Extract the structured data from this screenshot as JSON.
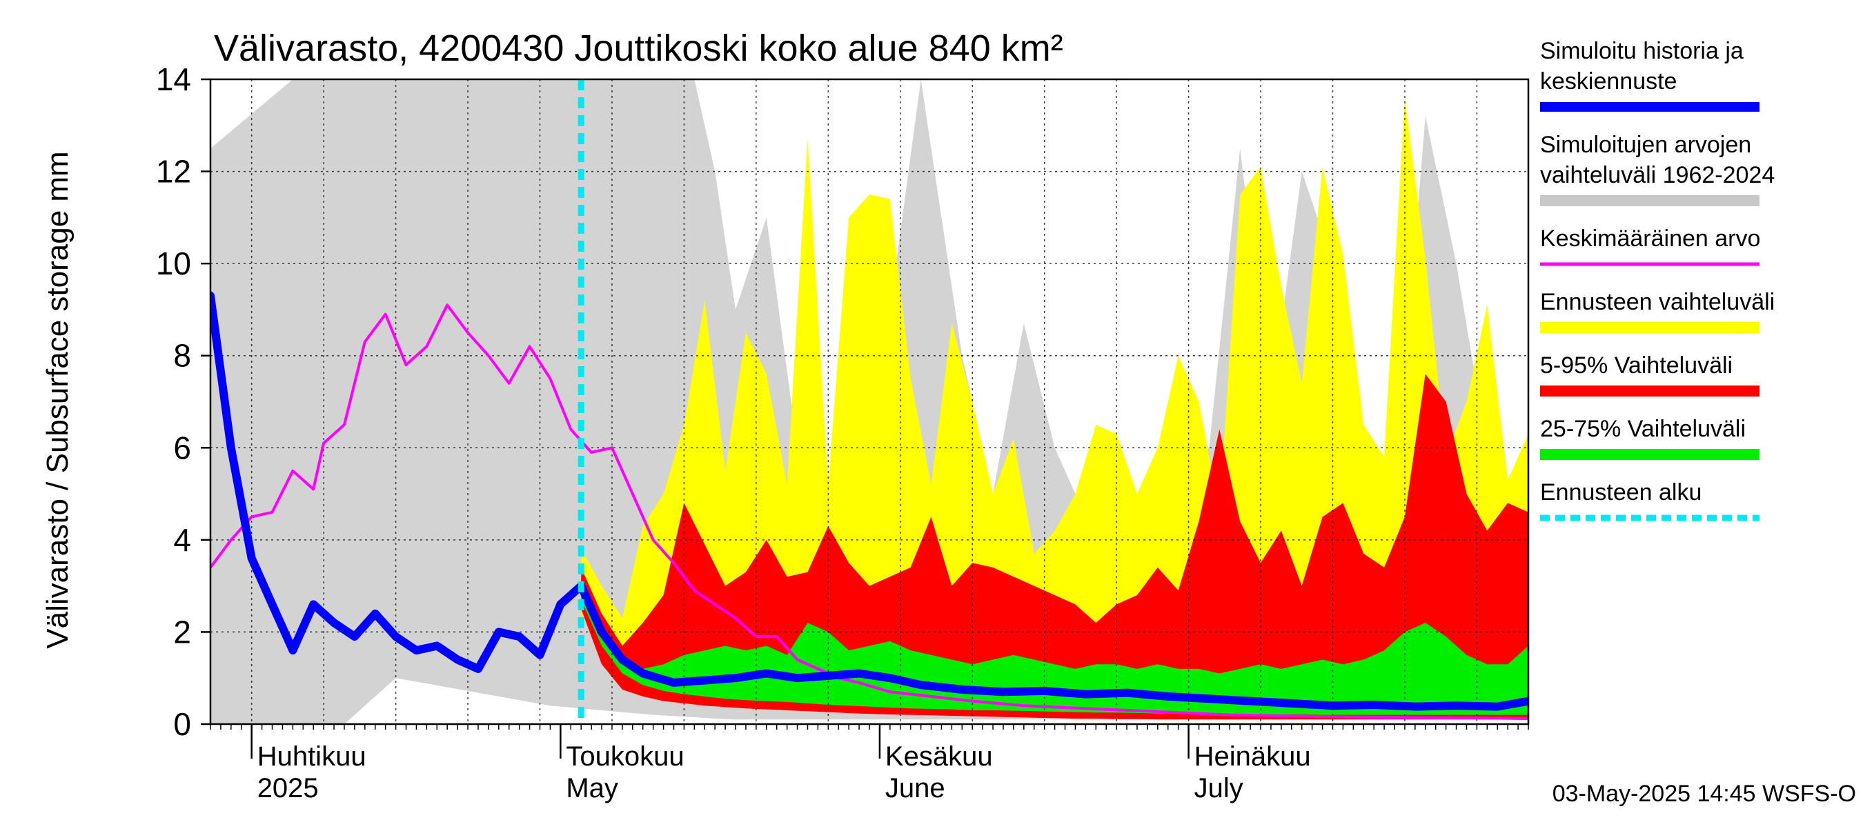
{
  "chart_data": {
    "type": "area",
    "title": "Välivarasto, 4200430 Jouttikoski koko alue 840 km²",
    "ylabel": "Välivarasto / Subsurface storage  mm",
    "ylim": [
      0,
      14
    ],
    "yticks": [
      0,
      2,
      4,
      6,
      8,
      10,
      12,
      14
    ],
    "xlim": [
      "2025-03-28",
      "2025-08-03"
    ],
    "grid": true,
    "legend_position": "right",
    "month_labels": [
      {
        "fi": "Huhtikuu",
        "en": "2025",
        "date": "2025-04-01"
      },
      {
        "fi": "Toukokuu",
        "en": "May",
        "date": "2025-05-01"
      },
      {
        "fi": "Kesäkuu",
        "en": "June",
        "date": "2025-06-01"
      },
      {
        "fi": "Heinäkuu",
        "en": "July",
        "date": "2025-07-01"
      }
    ],
    "forecast_start": "2025-05-03",
    "footer": "03-May-2025 14:45 WSFS-O",
    "legend": [
      {
        "label": "Simuloitu historia ja\nkeskiennuste",
        "color": "#0000ff",
        "kind": "line"
      },
      {
        "label": "Simuloitujen arvojen\nvaihteluväli 1962-2024",
        "color": "#c8c8c8",
        "kind": "band"
      },
      {
        "label": "Keskimääräinen arvo",
        "color": "#ff00ff",
        "kind": "line"
      },
      {
        "label": "Ennusteen vaihteluväli",
        "color": "#ffff00",
        "kind": "band"
      },
      {
        "label": "5-95% Vaihteluväli",
        "color": "#ff0000",
        "kind": "band"
      },
      {
        "label": "25-75% Vaihteluväli",
        "color": "#00ee00",
        "kind": "band"
      },
      {
        "label": "Ennusteen alku",
        "color": "#00e8f0",
        "kind": "dashed"
      }
    ],
    "series": [
      {
        "name": "Simuloitujen arvojen vaihteluväli 1962-2024",
        "kind": "band",
        "color": "#d3d3d3",
        "x": [
          "2025-03-28",
          "2025-04-05",
          "2025-04-10",
          "2025-04-15",
          "2025-04-20",
          "2025-04-25",
          "2025-04-30",
          "2025-05-05",
          "2025-05-10",
          "2025-05-14",
          "2025-05-16",
          "2025-05-18",
          "2025-05-21",
          "2025-05-24",
          "2025-05-27",
          "2025-05-30",
          "2025-06-02",
          "2025-06-05",
          "2025-06-09",
          "2025-06-12",
          "2025-06-15",
          "2025-06-18",
          "2025-06-21",
          "2025-06-24",
          "2025-06-27",
          "2025-06-30",
          "2025-07-03",
          "2025-07-06",
          "2025-07-09",
          "2025-07-12",
          "2025-07-15",
          "2025-07-18",
          "2025-07-21",
          "2025-07-24",
          "2025-07-27",
          "2025-07-30",
          "2025-08-03"
        ],
        "low": [
          0,
          0,
          0,
          1.0,
          0.8,
          0.6,
          0.4,
          0.3,
          0.2,
          0.15,
          0.12,
          0.1,
          0.1,
          0.1,
          0.1,
          0.1,
          0.1,
          0.1,
          0.1,
          0.1,
          0.1,
          0.1,
          0.1,
          0.1,
          0.1,
          0.1,
          0.1,
          0.1,
          0.1,
          0.1,
          0.1,
          0.1,
          0.1,
          0.1,
          0.1,
          0.1,
          0.1
        ],
        "high": [
          12.5,
          14,
          14,
          14,
          14,
          14,
          14,
          14,
          14,
          14,
          12,
          9,
          11,
          6,
          5,
          7,
          9,
          14,
          8,
          5,
          8.7,
          6,
          4.5,
          4,
          3.5,
          5.5,
          6,
          12.5,
          7,
          12,
          10,
          6,
          5,
          13.2,
          10,
          6,
          4.6
        ]
      },
      {
        "name": "Ennusteen vaihteluväli",
        "kind": "band",
        "color": "#ffff00",
        "x": [
          "2025-05-03",
          "2025-05-05",
          "2025-05-07",
          "2025-05-09",
          "2025-05-11",
          "2025-05-13",
          "2025-05-15",
          "2025-05-17",
          "2025-05-19",
          "2025-05-21",
          "2025-05-23",
          "2025-05-25",
          "2025-05-27",
          "2025-05-29",
          "2025-05-31",
          "2025-06-02",
          "2025-06-04",
          "2025-06-06",
          "2025-06-08",
          "2025-06-10",
          "2025-06-12",
          "2025-06-14",
          "2025-06-16",
          "2025-06-18",
          "2025-06-20",
          "2025-06-22",
          "2025-06-24",
          "2025-06-26",
          "2025-06-28",
          "2025-06-30",
          "2025-07-02",
          "2025-07-04",
          "2025-07-06",
          "2025-07-08",
          "2025-07-10",
          "2025-07-12",
          "2025-07-14",
          "2025-07-16",
          "2025-07-18",
          "2025-07-20",
          "2025-07-22",
          "2025-07-24",
          "2025-07-26",
          "2025-07-28",
          "2025-07-30",
          "2025-08-01",
          "2025-08-03"
        ],
        "low": [
          2.4,
          1.6,
          0.9,
          0.7,
          0.55,
          0.5,
          0.45,
          0.4,
          0.38,
          0.35,
          0.32,
          0.3,
          0.28,
          0.26,
          0.25,
          0.24,
          0.22,
          0.2,
          0.2,
          0.18,
          0.17,
          0.16,
          0.15,
          0.14,
          0.13,
          0.12,
          0.12,
          0.11,
          0.1,
          0.1,
          0.1,
          0.1,
          0.1,
          0.1,
          0.1,
          0.1,
          0.1,
          0.1,
          0.1,
          0.1,
          0.1,
          0.1,
          0.1,
          0.1,
          0.1,
          0.1,
          0.1
        ],
        "high": [
          3.8,
          3.0,
          2.3,
          4.3,
          5.0,
          6.5,
          9.2,
          5.5,
          8.5,
          7.6,
          5.2,
          12.7,
          5.2,
          11.0,
          11.5,
          11.4,
          7.5,
          5.2,
          8.7,
          7.0,
          5.0,
          6.2,
          3.7,
          4.2,
          5.0,
          6.5,
          6.3,
          5.0,
          6.0,
          8.0,
          7.0,
          4.6,
          11.5,
          12.1,
          9.5,
          7.4,
          12.1,
          10.2,
          6.5,
          5.8,
          13.6,
          10.1,
          5.8,
          7.0,
          9.1,
          5.3,
          6.3
        ]
      },
      {
        "name": "5-95% Vaihteluväli",
        "kind": "band",
        "color": "#ff0000",
        "x": [
          "2025-05-03",
          "2025-05-05",
          "2025-05-07",
          "2025-05-09",
          "2025-05-11",
          "2025-05-13",
          "2025-05-15",
          "2025-05-17",
          "2025-05-19",
          "2025-05-21",
          "2025-05-23",
          "2025-05-25",
          "2025-05-27",
          "2025-05-29",
          "2025-05-31",
          "2025-06-02",
          "2025-06-04",
          "2025-06-06",
          "2025-06-08",
          "2025-06-10",
          "2025-06-12",
          "2025-06-14",
          "2025-06-16",
          "2025-06-18",
          "2025-06-20",
          "2025-06-22",
          "2025-06-24",
          "2025-06-26",
          "2025-06-28",
          "2025-06-30",
          "2025-07-02",
          "2025-07-04",
          "2025-07-06",
          "2025-07-08",
          "2025-07-10",
          "2025-07-12",
          "2025-07-14",
          "2025-07-16",
          "2025-07-18",
          "2025-07-20",
          "2025-07-22",
          "2025-07-24",
          "2025-07-26",
          "2025-07-28",
          "2025-07-30",
          "2025-08-01",
          "2025-08-03"
        ],
        "low": [
          2.5,
          1.3,
          0.75,
          0.6,
          0.5,
          0.45,
          0.4,
          0.37,
          0.34,
          0.32,
          0.3,
          0.28,
          0.26,
          0.24,
          0.22,
          0.21,
          0.2,
          0.19,
          0.18,
          0.17,
          0.16,
          0.15,
          0.14,
          0.13,
          0.12,
          0.12,
          0.11,
          0.11,
          0.1,
          0.1,
          0.1,
          0.1,
          0.1,
          0.1,
          0.1,
          0.1,
          0.1,
          0.1,
          0.1,
          0.1,
          0.1,
          0.1,
          0.1,
          0.1,
          0.1,
          0.1,
          0.1
        ],
        "high": [
          3.4,
          2.4,
          1.7,
          2.2,
          2.8,
          4.8,
          3.9,
          3.0,
          3.3,
          4.0,
          3.2,
          3.3,
          4.3,
          3.5,
          3.0,
          3.2,
          3.4,
          4.5,
          3.0,
          3.5,
          3.4,
          3.2,
          3.0,
          2.8,
          2.6,
          2.2,
          2.6,
          2.8,
          3.4,
          2.9,
          4.4,
          6.4,
          4.4,
          3.5,
          4.2,
          3.0,
          4.5,
          4.8,
          3.7,
          3.4,
          4.5,
          7.6,
          7.0,
          5.0,
          4.2,
          4.8,
          4.6
        ]
      },
      {
        "name": "25-75% Vaihteluväli",
        "kind": "band",
        "color": "#00ee00",
        "x": [
          "2025-05-03",
          "2025-05-05",
          "2025-05-07",
          "2025-05-09",
          "2025-05-11",
          "2025-05-13",
          "2025-05-15",
          "2025-05-17",
          "2025-05-19",
          "2025-05-21",
          "2025-05-23",
          "2025-05-25",
          "2025-05-27",
          "2025-05-29",
          "2025-05-31",
          "2025-06-02",
          "2025-06-04",
          "2025-06-06",
          "2025-06-08",
          "2025-06-10",
          "2025-06-12",
          "2025-06-14",
          "2025-06-16",
          "2025-06-18",
          "2025-06-20",
          "2025-06-22",
          "2025-06-24",
          "2025-06-26",
          "2025-06-28",
          "2025-06-30",
          "2025-07-02",
          "2025-07-04",
          "2025-07-06",
          "2025-07-08",
          "2025-07-10",
          "2025-07-12",
          "2025-07-14",
          "2025-07-16",
          "2025-07-18",
          "2025-07-20",
          "2025-07-22",
          "2025-07-24",
          "2025-07-26",
          "2025-07-28",
          "2025-07-30",
          "2025-08-01",
          "2025-08-03"
        ],
        "low": [
          2.7,
          1.7,
          1.1,
          0.85,
          0.72,
          0.65,
          0.6,
          0.55,
          0.52,
          0.5,
          0.48,
          0.45,
          0.42,
          0.4,
          0.38,
          0.36,
          0.34,
          0.33,
          0.32,
          0.3,
          0.3,
          0.29,
          0.28,
          0.27,
          0.26,
          0.25,
          0.25,
          0.24,
          0.23,
          0.23,
          0.22,
          0.22,
          0.21,
          0.21,
          0.21,
          0.21,
          0.2,
          0.2,
          0.2,
          0.2,
          0.2,
          0.2,
          0.2,
          0.2,
          0.2,
          0.2,
          0.2
        ],
        "high": [
          3.1,
          2.1,
          1.5,
          1.2,
          1.3,
          1.5,
          1.6,
          1.7,
          1.6,
          1.7,
          1.5,
          2.2,
          2.0,
          1.6,
          1.7,
          1.8,
          1.6,
          1.5,
          1.4,
          1.3,
          1.4,
          1.5,
          1.4,
          1.3,
          1.2,
          1.3,
          1.3,
          1.2,
          1.3,
          1.2,
          1.2,
          1.1,
          1.2,
          1.3,
          1.2,
          1.3,
          1.4,
          1.3,
          1.4,
          1.6,
          2.0,
          2.2,
          1.9,
          1.5,
          1.3,
          1.3,
          1.7
        ]
      },
      {
        "name": "Keskimääräinen arvo",
        "kind": "line",
        "color": "#ff00ff",
        "x": [
          "2025-03-28",
          "2025-03-30",
          "2025-04-01",
          "2025-04-03",
          "2025-04-05",
          "2025-04-07",
          "2025-04-08",
          "2025-04-10",
          "2025-04-12",
          "2025-04-14",
          "2025-04-16",
          "2025-04-18",
          "2025-04-20",
          "2025-04-22",
          "2025-04-24",
          "2025-04-26",
          "2025-04-28",
          "2025-04-30",
          "2025-05-02",
          "2025-05-04",
          "2025-05-06",
          "2025-05-08",
          "2025-05-10",
          "2025-05-12",
          "2025-05-14",
          "2025-05-16",
          "2025-05-18",
          "2025-05-20",
          "2025-05-22",
          "2025-05-24",
          "2025-05-26",
          "2025-05-28",
          "2025-05-30",
          "2025-06-02",
          "2025-06-06",
          "2025-06-10",
          "2025-06-15",
          "2025-06-20",
          "2025-06-25",
          "2025-06-30",
          "2025-07-05",
          "2025-07-10",
          "2025-07-15",
          "2025-07-20",
          "2025-07-25",
          "2025-07-30",
          "2025-08-03"
        ],
        "values": [
          3.4,
          4.0,
          4.5,
          4.6,
          5.5,
          5.1,
          6.1,
          6.5,
          8.3,
          8.9,
          7.8,
          8.2,
          9.1,
          8.5,
          8.0,
          7.4,
          8.2,
          7.5,
          6.4,
          5.9,
          6.0,
          5.0,
          4.0,
          3.5,
          2.9,
          2.6,
          2.3,
          1.9,
          1.9,
          1.4,
          1.2,
          1.0,
          0.9,
          0.7,
          0.6,
          0.5,
          0.4,
          0.35,
          0.3,
          0.25,
          0.2,
          0.18,
          0.16,
          0.15,
          0.14,
          0.13,
          0.12
        ]
      },
      {
        "name": "Simuloitu historia ja keskiennuste",
        "kind": "line",
        "color": "#0000ff",
        "x": [
          "2025-03-28",
          "2025-03-30",
          "2025-04-01",
          "2025-04-03",
          "2025-04-05",
          "2025-04-07",
          "2025-04-09",
          "2025-04-11",
          "2025-04-13",
          "2025-04-15",
          "2025-04-17",
          "2025-04-19",
          "2025-04-21",
          "2025-04-23",
          "2025-04-25",
          "2025-04-27",
          "2025-04-29",
          "2025-05-01",
          "2025-05-03",
          "2025-05-05",
          "2025-05-07",
          "2025-05-09",
          "2025-05-12",
          "2025-05-15",
          "2025-05-18",
          "2025-05-21",
          "2025-05-24",
          "2025-05-27",
          "2025-05-30",
          "2025-06-02",
          "2025-06-05",
          "2025-06-09",
          "2025-06-13",
          "2025-06-17",
          "2025-06-21",
          "2025-06-25",
          "2025-06-29",
          "2025-07-03",
          "2025-07-07",
          "2025-07-11",
          "2025-07-15",
          "2025-07-19",
          "2025-07-23",
          "2025-07-27",
          "2025-07-31",
          "2025-08-03"
        ],
        "values": [
          9.3,
          6.0,
          3.6,
          2.6,
          1.6,
          2.6,
          2.2,
          1.9,
          2.4,
          1.9,
          1.6,
          1.7,
          1.4,
          1.2,
          2.0,
          1.9,
          1.5,
          2.6,
          3.0,
          2.0,
          1.4,
          1.1,
          0.9,
          0.95,
          1.0,
          1.1,
          1.0,
          1.05,
          1.1,
          1.0,
          0.85,
          0.75,
          0.7,
          0.72,
          0.65,
          0.68,
          0.6,
          0.55,
          0.5,
          0.45,
          0.4,
          0.42,
          0.38,
          0.4,
          0.38,
          0.5
        ]
      }
    ]
  }
}
